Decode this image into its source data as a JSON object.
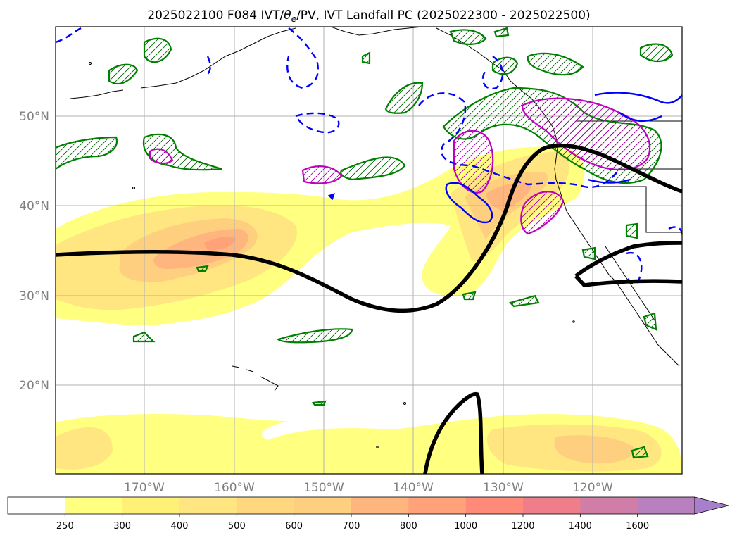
{
  "title": {
    "prefix": "2025022100 F084 IVT/",
    "theta": "θ",
    "theta_sub": "e",
    "suffix": "/PV, IVT Landfall PC (2025022300 - 2025022500)"
  },
  "map": {
    "lat_labels": [
      "50°N",
      "40°N",
      "30°N",
      "20°N"
    ],
    "lon_labels": [
      "170°W",
      "160°W",
      "150°W",
      "140°W",
      "130°W",
      "120°W"
    ]
  },
  "colors": {
    "ivt_fill": [
      "#ffff80",
      "#fff176",
      "#ffe680",
      "#ffd77e",
      "#ffcf80",
      "#ffb67e",
      "#ffa27a",
      "#ff8a7a",
      "#f07d8a",
      "#d07ea8",
      "#b980c0",
      "#a77fcc"
    ],
    "coast": "#000000",
    "green_contour": "#008000",
    "blue_contour": "#0000ff",
    "magenta_contour": "#c000c0",
    "black_contour": "#000000",
    "grid": "#b0b0b0"
  },
  "colorbar": {
    "ticks": [
      "250",
      "300",
      "400",
      "500",
      "600",
      "700",
      "800",
      "1000",
      "1200",
      "1400",
      "1600"
    ]
  }
}
